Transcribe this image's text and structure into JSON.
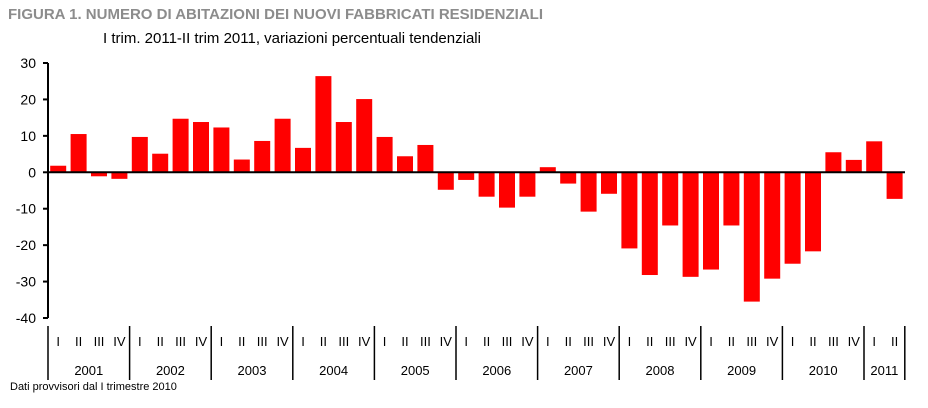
{
  "chart_data": {
    "type": "bar",
    "title": "FIGURA 1. NUMERO DI ABITAZIONI DEI NUOVI FABBRICATI RESIDENZIALI",
    "subtitle": "I trim. 2011-II trim 2011, variazioni percentuali tendenziali",
    "note": "Dati provvisori dal I trimestre 2010",
    "ylim": [
      -40,
      30
    ],
    "yticks": [
      30,
      20,
      10,
      0,
      -10,
      -20,
      -30,
      -40
    ],
    "quarter_labels": [
      "I",
      "II",
      "III",
      "IV"
    ],
    "years": [
      "2001",
      "2002",
      "2003",
      "2004",
      "2005",
      "2006",
      "2007",
      "2008",
      "2009",
      "2010",
      "2011"
    ],
    "bar_color": "#ff0000",
    "grid": false,
    "values": [
      1.8,
      10.5,
      -1.1,
      -1.8,
      9.7,
      5.1,
      14.7,
      13.8,
      12.3,
      3.5,
      8.6,
      14.7,
      6.7,
      26.4,
      13.8,
      20.1,
      9.7,
      4.4,
      7.5,
      -4.8,
      -2.1,
      -6.7,
      -9.7,
      -6.7,
      1.4,
      -3.1,
      -10.8,
      -5.9,
      -20.9,
      -28.2,
      -14.6,
      -28.7,
      -26.7,
      -14.6,
      -35.5,
      -29.2,
      -25.1,
      -21.7,
      5.5,
      3.4,
      8.5,
      -7.3
    ]
  }
}
